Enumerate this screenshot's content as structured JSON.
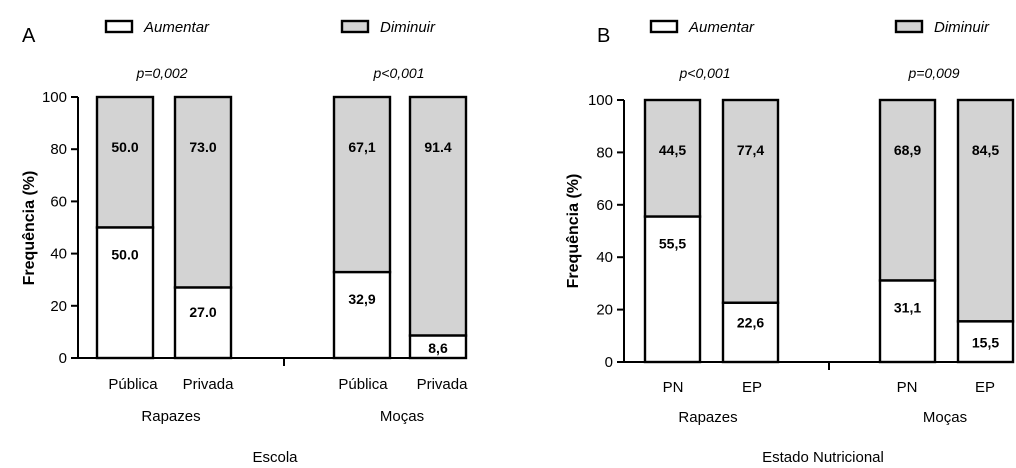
{
  "chart_data": [
    {
      "type": "bar",
      "stacked": true,
      "panel_label": "A",
      "xlabel": "Escola",
      "ylabel": "Frequência (%)",
      "ylim": [
        0,
        100
      ],
      "yticks": [
        "0",
        "20",
        "40",
        "60",
        "80",
        "100"
      ],
      "legend": [
        {
          "label": "Aumentar",
          "color": "#ffffff"
        },
        {
          "label": "Diminuir",
          "color": "#d3d3d3"
        }
      ],
      "groups": [
        {
          "name": "Rapazes",
          "p_value": "p=0,002",
          "categories": [
            "Pública",
            "Privada"
          ]
        },
        {
          "name": "Moças",
          "p_value": "p<0,001",
          "categories": [
            "Pública",
            "Privada"
          ]
        }
      ],
      "series": [
        {
          "name": "Aumentar",
          "color": "#ffffff",
          "values": [
            50.0,
            27.0,
            32.9,
            8.6
          ],
          "labels": [
            "50.0",
            "27.0",
            "32,9",
            "8,6"
          ]
        },
        {
          "name": "Diminuir",
          "color": "#d3d3d3",
          "values": [
            50.0,
            73.0,
            67.1,
            91.4
          ],
          "labels": [
            "50.0",
            "73.0",
            "67,1",
            "91.4"
          ]
        }
      ]
    },
    {
      "type": "bar",
      "stacked": true,
      "panel_label": "B",
      "xlabel": "Estado Nutricional",
      "ylabel": "Frequência (%)",
      "ylim": [
        0,
        100
      ],
      "yticks": [
        "0",
        "20",
        "40",
        "60",
        "80",
        "100"
      ],
      "legend": [
        {
          "label": "Aumentar",
          "color": "#ffffff"
        },
        {
          "label": "Diminuir",
          "color": "#d3d3d3"
        }
      ],
      "groups": [
        {
          "name": "Rapazes",
          "p_value": "p<0,001",
          "categories": [
            "PN",
            "EP"
          ]
        },
        {
          "name": "Moças",
          "p_value": "p=0,009",
          "categories": [
            "PN",
            "EP"
          ]
        }
      ],
      "series": [
        {
          "name": "Aumentar",
          "color": "#ffffff",
          "values": [
            55.5,
            22.6,
            31.1,
            15.5
          ],
          "labels": [
            "55,5",
            "22,6",
            "31,1",
            "15,5"
          ]
        },
        {
          "name": "Diminuir",
          "color": "#d3d3d3",
          "values": [
            44.5,
            77.4,
            68.9,
            84.5
          ],
          "labels": [
            "44,5",
            "77,4",
            "68,9",
            "84,5"
          ]
        }
      ]
    }
  ]
}
